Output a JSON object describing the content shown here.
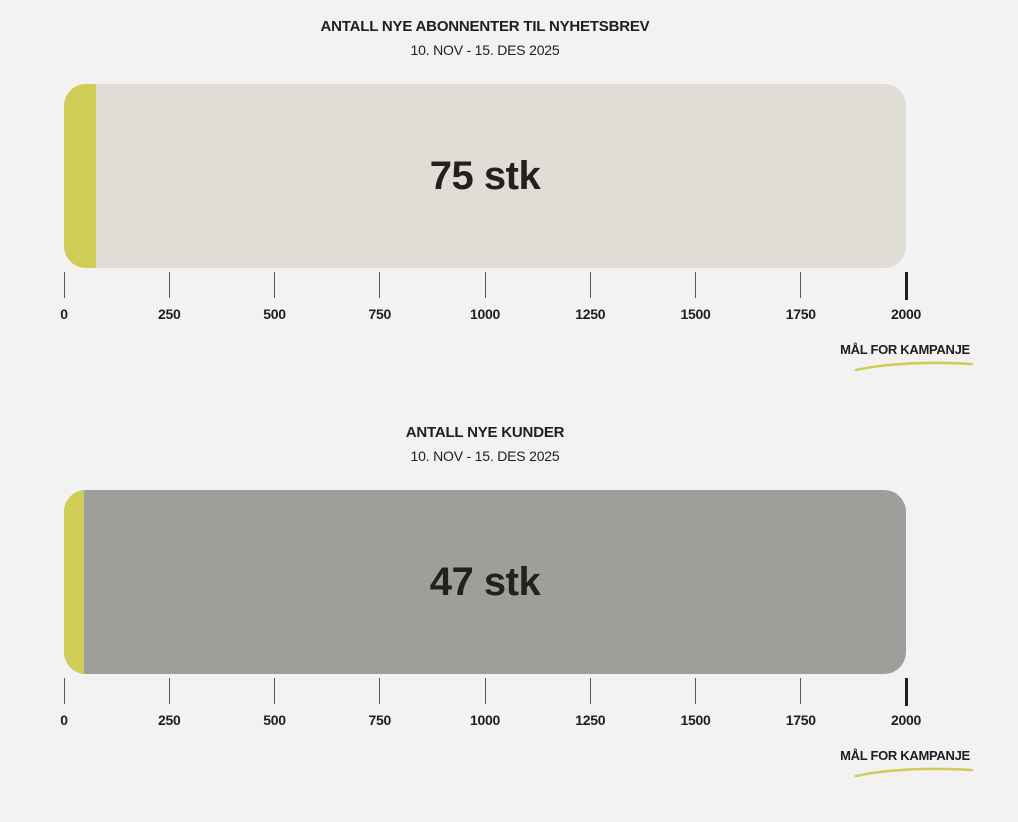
{
  "chart_data": [
    {
      "type": "bar",
      "title": "ANTALL NYE ABONNENTER TIL NYHETSBREV",
      "subtitle": "10. NOV - 15. DES 2025",
      "value": 75,
      "value_label": "75 stk",
      "goal": 2000,
      "goal_label": "MÅL FOR KAMPANJE",
      "xlim": [
        0,
        2000
      ],
      "ticks": [
        "0",
        "250",
        "500",
        "750",
        "1000",
        "1250",
        "1500",
        "1750",
        "2000"
      ],
      "orientation": "horizontal",
      "grid": false,
      "colors": {
        "fill": "#cfcd55",
        "track": "#dfddd5",
        "goal_underline": "#cfcd55"
      }
    },
    {
      "type": "bar",
      "title": "ANTALL NYE KUNDER",
      "subtitle": "10. NOV - 15. DES 2025",
      "value": 47,
      "value_label": "47 stk",
      "goal": 2000,
      "goal_label": "MÅL FOR KAMPANJE",
      "xlim": [
        0,
        2000
      ],
      "ticks": [
        "0",
        "250",
        "500",
        "750",
        "1000",
        "1250",
        "1500",
        "1750",
        "2000"
      ],
      "orientation": "horizontal",
      "grid": false,
      "colors": {
        "fill": "#cfcd55",
        "track": "#9f9e9a",
        "goal_underline": "#cfcd55"
      }
    }
  ]
}
